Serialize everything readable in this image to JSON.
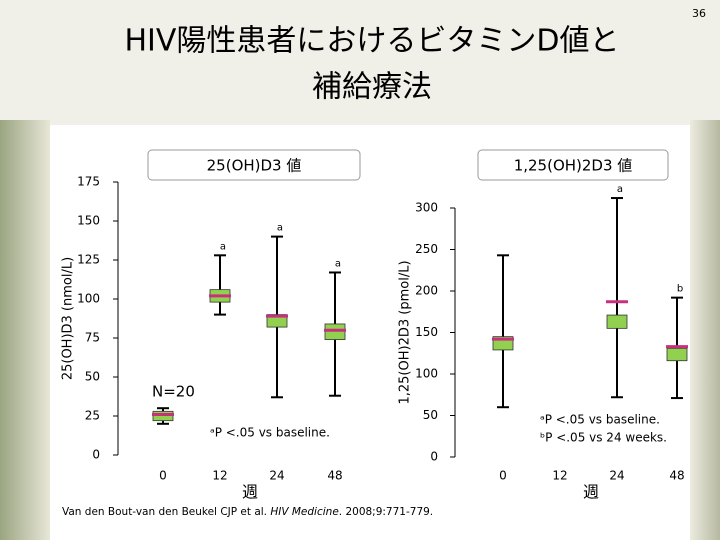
{
  "title": [
    "HIV陽性患者におけるビタミンD値と",
    "補給療法"
  ],
  "slide_number": "36",
  "citation": [
    "Van den Bout-van den Beukel CJP et al. ",
    "HIV Medicine",
    ". 2008;9:771-779."
  ],
  "chart_data": [
    {
      "type": "box",
      "panel_title": "25(OH)D3 値",
      "y_label": "25(OH)D3 (nmol/L)",
      "x_label": "週",
      "categories": [
        "0",
        "12",
        "24",
        "48"
      ],
      "min": [
        20,
        90,
        37,
        38
      ],
      "q1": [
        22,
        98,
        82,
        74
      ],
      "median": [
        26,
        102,
        89,
        80
      ],
      "q3": [
        28,
        106,
        90,
        84
      ],
      "max": [
        30,
        128,
        140,
        117
      ],
      "sig_labels": [
        null,
        "a",
        "a",
        "a"
      ],
      "box_color": "#92d050",
      "median_color": "#c8307f",
      "ylim": [
        0,
        175
      ],
      "yticks": [
        0,
        25,
        50,
        75,
        100,
        125,
        150,
        175
      ],
      "annotations": [
        "N=20",
        "ᵃP <.05 vs baseline."
      ]
    },
    {
      "type": "box",
      "panel_title": "1,25(OH)2D3 値",
      "y_label": "1,25(OH)2D3 (pmol/L)",
      "x_label": "週",
      "categories": [
        "0",
        "12",
        "24",
        "48"
      ],
      "min": [
        60,
        null,
        72,
        71
      ],
      "q1": [
        129,
        null,
        155,
        116
      ],
      "median": [
        142,
        null,
        187,
        133
      ],
      "q3": [
        145,
        null,
        171,
        131
      ],
      "max": [
        243,
        null,
        312,
        192
      ],
      "sig_labels": [
        null,
        null,
        "a",
        "b"
      ],
      "box_color": "#92d050",
      "median_color": "#c8307f",
      "ylim": [
        0,
        300
      ],
      "yticks": [
        0,
        50,
        100,
        150,
        200,
        250,
        300
      ],
      "annotations": [
        "ᵃP <.05 vs baseline.",
        "ᵇP <.05 vs 24 weeks."
      ]
    }
  ]
}
